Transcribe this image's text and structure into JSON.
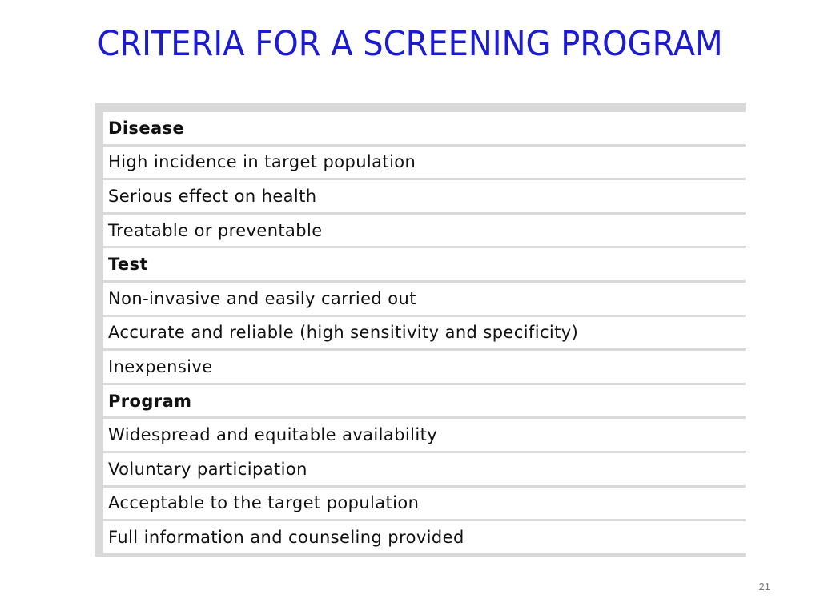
{
  "slide": {
    "title": "CRITERIA FOR A SCREENING PROGRAM",
    "page_number": "21"
  },
  "criteria_table": {
    "rows": [
      {
        "type": "category",
        "text": "Disease"
      },
      {
        "type": "item",
        "text": "High incidence in target population"
      },
      {
        "type": "item",
        "text": "Serious effect on health"
      },
      {
        "type": "item",
        "text": "Treatable or preventable"
      },
      {
        "type": "category",
        "text": "Test"
      },
      {
        "type": "item",
        "text": "Non-invasive and easily carried out"
      },
      {
        "type": "item",
        "text": "Accurate and reliable (high sensitivity and specificity)"
      },
      {
        "type": "item",
        "text": "Inexpensive"
      },
      {
        "type": "category",
        "text": "Program"
      },
      {
        "type": "item",
        "text": "Widespread and equitable availability"
      },
      {
        "type": "item",
        "text": "Voluntary participation"
      },
      {
        "type": "item",
        "text": "Acceptable to the target population"
      },
      {
        "type": "item",
        "text": "Full information and counseling provided"
      }
    ]
  },
  "colors": {
    "title": "#1b1bd3",
    "table_frame": "#d9d9d9",
    "page_number": "#7a7a7a"
  }
}
